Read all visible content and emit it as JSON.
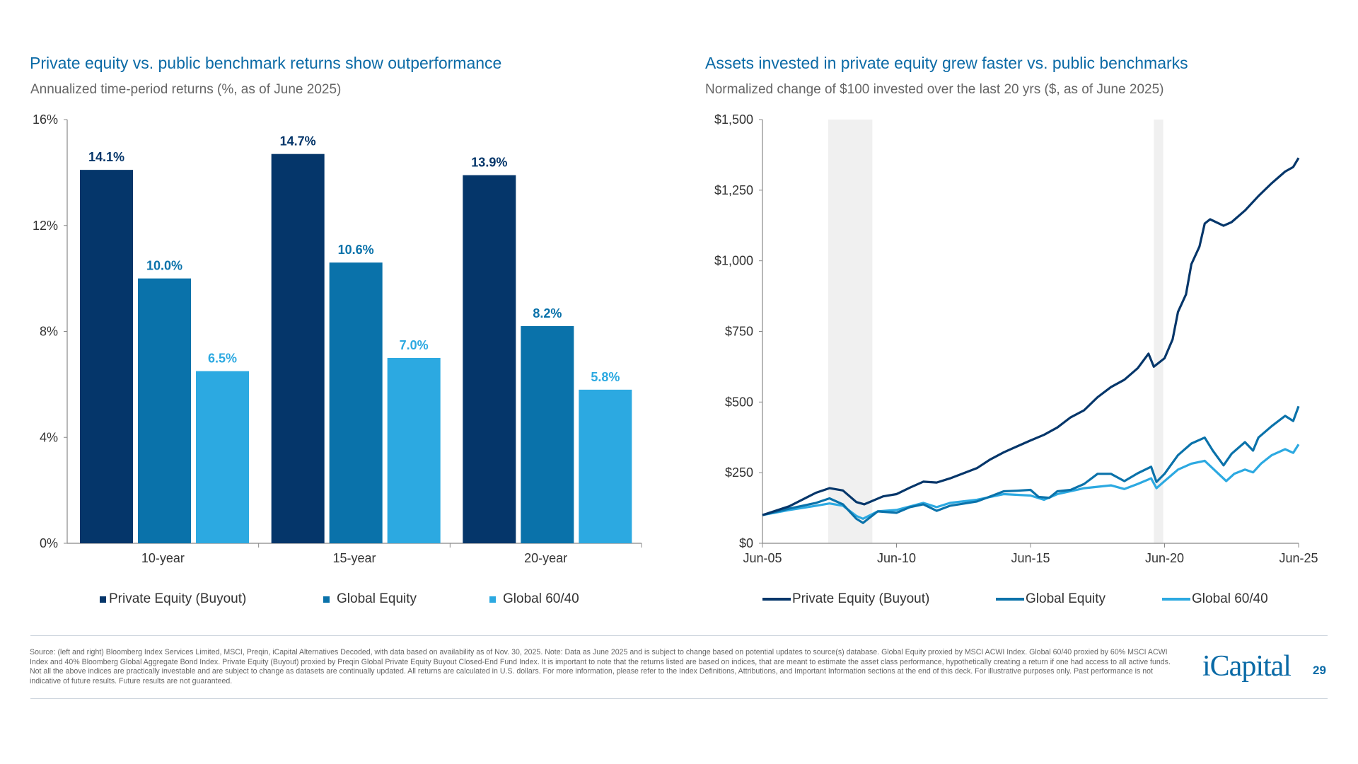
{
  "colors": {
    "pe": "#05366a",
    "ge": "#0a72aa",
    "bal": "#2ca9e1",
    "title": "#0b6aa6",
    "shade": "#f0f0f0"
  },
  "left": {
    "title": "Private equity vs. public benchmark returns show outperformance",
    "subtitle": "Annualized time-period returns (%, as of June 2025)"
  },
  "right": {
    "title": "Assets invested in private equity grew faster vs. public benchmarks",
    "subtitle": "Normalized change of $100 invested over the last 20 yrs ($, as of June 2025)"
  },
  "chart_data": [
    {
      "type": "bar",
      "categories": [
        "10-year",
        "15-year",
        "20-year"
      ],
      "series": [
        {
          "name": "Private Equity (Buyout)",
          "values": [
            14.1,
            14.7,
            13.9
          ],
          "labels": [
            "14.1%",
            "14.7%",
            "13.9%"
          ]
        },
        {
          "name": "Global Equity",
          "values": [
            10.0,
            10.6,
            8.2
          ],
          "labels": [
            "10.0%",
            "10.6%",
            "8.2%"
          ]
        },
        {
          "name": "Global 60/40",
          "values": [
            6.5,
            7.0,
            5.8
          ],
          "labels": [
            "6.5%",
            "7.0%",
            "5.8%"
          ]
        }
      ],
      "ylim": [
        0,
        16
      ],
      "yticks": [
        0,
        4,
        8,
        12,
        16
      ],
      "ytick_labels": [
        "0%",
        "4%",
        "8%",
        "12%",
        "16%"
      ],
      "legend": "bottom",
      "grid": false
    },
    {
      "type": "line",
      "xlim": [
        2005.5,
        2025.5
      ],
      "xticks": [
        2005.5,
        2010.5,
        2015.5,
        2020.5,
        2025.5
      ],
      "xtick_labels": [
        "Jun-05",
        "Jun-10",
        "Jun-15",
        "Jun-20",
        "Jun-25"
      ],
      "ylim": [
        0,
        1500
      ],
      "yticks": [
        0,
        250,
        500,
        750,
        1000,
        1250,
        1500
      ],
      "ytick_labels": [
        "$0",
        "$250",
        "$500",
        "$750",
        "$1,000",
        "$1,250",
        "$1,500"
      ],
      "shaded_periods": [
        [
          2007.95,
          2009.6
        ],
        [
          2020.1,
          2020.45
        ]
      ],
      "legend": "bottom",
      "grid": false,
      "series": [
        {
          "name": "Private Equity (Buyout)",
          "points": [
            [
              2005.5,
              100
            ],
            [
              2006.5,
              131
            ],
            [
              2007.5,
              179
            ],
            [
              2008,
              195
            ],
            [
              2008.5,
              187
            ],
            [
              2009,
              146
            ],
            [
              2009.3,
              138
            ],
            [
              2010,
              166
            ],
            [
              2010.5,
              174
            ],
            [
              2011,
              197
            ],
            [
              2011.5,
              218
            ],
            [
              2012,
              215
            ],
            [
              2012.5,
              230
            ],
            [
              2013.5,
              266
            ],
            [
              2014,
              297
            ],
            [
              2014.5,
              322
            ],
            [
              2015,
              343
            ],
            [
              2015.5,
              364
            ],
            [
              2016,
              384
            ],
            [
              2016.5,
              410
            ],
            [
              2017,
              446
            ],
            [
              2017.5,
              471
            ],
            [
              2018,
              517
            ],
            [
              2018.5,
              553
            ],
            [
              2019,
              579
            ],
            [
              2019.5,
              620
            ],
            [
              2019.9,
              671
            ],
            [
              2020.1,
              625
            ],
            [
              2020.5,
              655
            ],
            [
              2020.8,
              722
            ],
            [
              2021,
              819
            ],
            [
              2021.3,
              881
            ],
            [
              2021.5,
              988
            ],
            [
              2021.8,
              1050
            ],
            [
              2022,
              1132
            ],
            [
              2022.2,
              1147
            ],
            [
              2022.7,
              1124
            ],
            [
              2023,
              1137
            ],
            [
              2023.5,
              1178
            ],
            [
              2024,
              1229
            ],
            [
              2024.5,
              1275
            ],
            [
              2025,
              1316
            ],
            [
              2025.3,
              1332
            ],
            [
              2025.5,
              1364
            ]
          ]
        },
        {
          "name": "Global Equity",
          "points": [
            [
              2005.5,
              100
            ],
            [
              2006.5,
              123
            ],
            [
              2007.5,
              143
            ],
            [
              2008,
              159
            ],
            [
              2008.5,
              138
            ],
            [
              2009,
              87
            ],
            [
              2009.25,
              72
            ],
            [
              2009.8,
              113
            ],
            [
              2010.5,
              108
            ],
            [
              2011,
              128
            ],
            [
              2011.5,
              138
            ],
            [
              2012,
              115
            ],
            [
              2012.5,
              133
            ],
            [
              2013.5,
              148
            ],
            [
              2014,
              166
            ],
            [
              2014.5,
              184
            ],
            [
              2015,
              186
            ],
            [
              2015.5,
              189
            ],
            [
              2015.8,
              164
            ],
            [
              2016.2,
              161
            ],
            [
              2016.5,
              184
            ],
            [
              2017,
              189
            ],
            [
              2017.5,
              210
            ],
            [
              2018,
              246
            ],
            [
              2018.5,
              246
            ],
            [
              2019,
              220
            ],
            [
              2019.5,
              248
            ],
            [
              2020,
              271
            ],
            [
              2020.2,
              217
            ],
            [
              2020.5,
              246
            ],
            [
              2021,
              312
            ],
            [
              2021.5,
              353
            ],
            [
              2022,
              374
            ],
            [
              2022.3,
              328
            ],
            [
              2022.7,
              276
            ],
            [
              2023,
              317
            ],
            [
              2023.5,
              358
            ],
            [
              2023.8,
              328
            ],
            [
              2024,
              374
            ],
            [
              2024.5,
              415
            ],
            [
              2025,
              451
            ],
            [
              2025.3,
              433
            ],
            [
              2025.5,
              485
            ]
          ]
        },
        {
          "name": "Global 60/40",
          "points": [
            [
              2005.5,
              100
            ],
            [
              2006.5,
              118
            ],
            [
              2007.5,
              133
            ],
            [
              2008,
              141
            ],
            [
              2008.5,
              133
            ],
            [
              2009,
              97
            ],
            [
              2009.25,
              87
            ],
            [
              2009.8,
              113
            ],
            [
              2010.5,
              118
            ],
            [
              2011.5,
              143
            ],
            [
              2012,
              128
            ],
            [
              2012.5,
              143
            ],
            [
              2013.5,
              154
            ],
            [
              2014.5,
              174
            ],
            [
              2015.5,
              169
            ],
            [
              2016,
              154
            ],
            [
              2016.5,
              174
            ],
            [
              2017.5,
              195
            ],
            [
              2018.5,
              205
            ],
            [
              2019,
              192
            ],
            [
              2019.5,
              210
            ],
            [
              2020,
              230
            ],
            [
              2020.2,
              195
            ],
            [
              2020.5,
              220
            ],
            [
              2021,
              261
            ],
            [
              2021.5,
              282
            ],
            [
              2022,
              292
            ],
            [
              2022.8,
              220
            ],
            [
              2023.1,
              246
            ],
            [
              2023.5,
              261
            ],
            [
              2023.8,
              251
            ],
            [
              2024.1,
              282
            ],
            [
              2024.5,
              312
            ],
            [
              2025,
              333
            ],
            [
              2025.3,
              320
            ],
            [
              2025.5,
              350
            ]
          ]
        }
      ]
    }
  ],
  "footnote": "Source: (left and right) Bloomberg Index Services Limited, MSCI, Preqin, iCapital Alternatives Decoded, with data based on availability as of Nov. 30, 2025. Note: Data as June 2025 and is subject to change based on potential updates to source(s) database. Global Equity proxied by MSCI ACWI Index. Global 60/40 proxied by 60% MSCI ACWI Index and 40% Bloomberg Global Aggregate Bond Index. Private Equity (Buyout) proxied by Preqin Global Private Equity Buyout Closed-End Fund Index. It is important to note that the returns listed are based on indices, that are meant to estimate the asset class performance, hypothetically creating a return if one had access to all active funds. Not all the above indices are practically investable and are subject to change as datasets are continually updated. All returns are calculated in U.S. dollars. For more information, please refer to the Index Definitions, Attributions, and Important Information sections at the end of this deck. For illustrative purposes only. Past performance is not indicative of future results. Future results are not guaranteed.",
  "logo": "iCapital",
  "page_number": "29"
}
